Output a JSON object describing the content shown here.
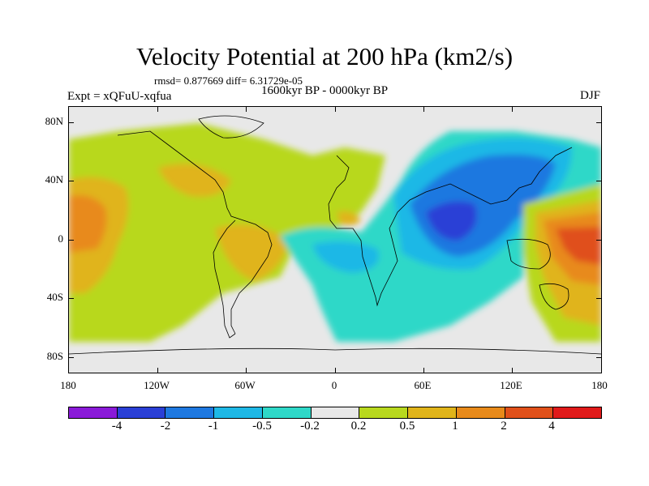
{
  "header": {
    "title": "Velocity Potential at 200 hPa (km2/s)",
    "stats": "rmsd= 0.877669 diff= 6.31729e-05",
    "experiment": "Expt = xQFuU-xqfua",
    "period": "1600kyr BP - 0000kyr BP",
    "season": "DJF"
  },
  "axes": {
    "lat_ticks": [
      "80N",
      "40N",
      "0",
      "40S",
      "80S"
    ],
    "lon_ticks": [
      "180",
      "120W",
      "60W",
      "0",
      "60E",
      "120E",
      "180"
    ]
  },
  "colorbar": {
    "colors": [
      "#8a1ad8",
      "#2a3fd6",
      "#1e78e0",
      "#1eb8e6",
      "#2ed8c8",
      "#e8e8e8",
      "#b8d81e",
      "#e0b41a",
      "#e88a1a",
      "#e0501a",
      "#e01a1a"
    ],
    "labels": [
      "-4",
      "-2",
      "-1",
      "-0.5",
      "-0.2",
      "0.2",
      "0.5",
      "1",
      "2",
      "4"
    ]
  }
}
